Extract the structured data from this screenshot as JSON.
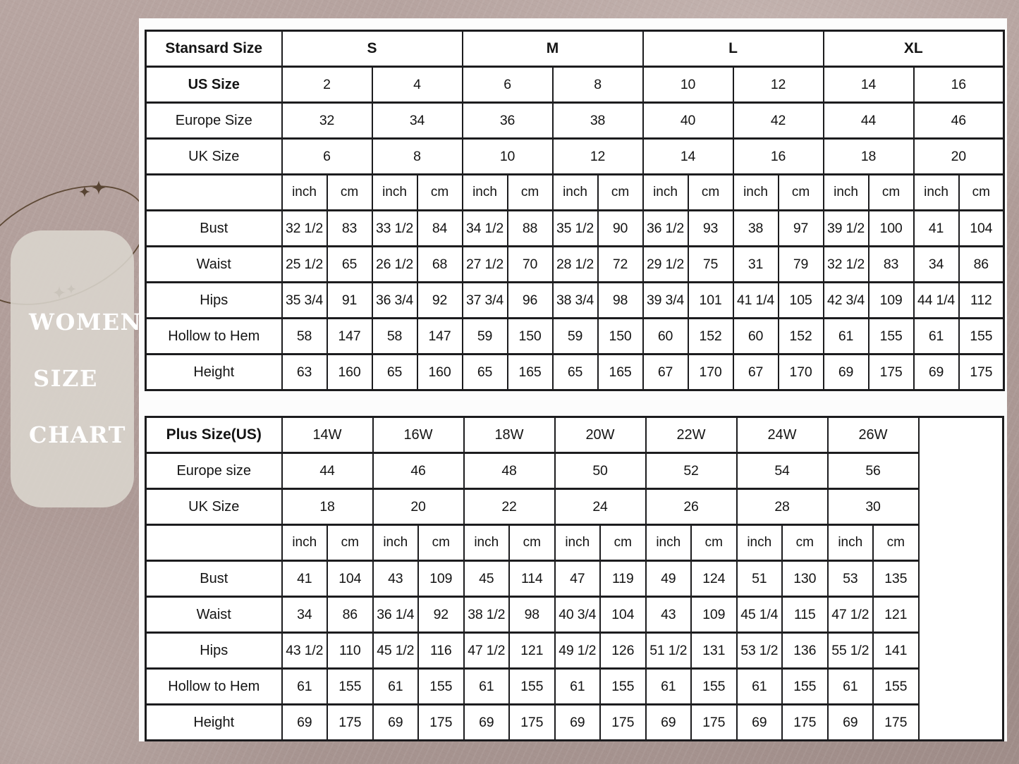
{
  "page_title": "Women Size Chart",
  "side_label": {
    "lines": [
      "WOMEN",
      "SIZE",
      "CHART"
    ]
  },
  "colors": {
    "background": "#ab9793",
    "card": "#dbd6ce",
    "panel": "#fcfcfc",
    "table_border": "#1c1c1e",
    "text": "#141414",
    "deco_line": "#5e4936"
  },
  "standard_table": {
    "corner_label": "Stansard Size",
    "size_groups": [
      "S",
      "M",
      "L",
      "XL"
    ],
    "size_rows": [
      {
        "label": "US Size",
        "bold": true,
        "values": [
          "2",
          "4",
          "6",
          "8",
          "10",
          "12",
          "14",
          "16"
        ]
      },
      {
        "label": "Europe Size",
        "bold": false,
        "values": [
          "32",
          "34",
          "36",
          "38",
          "40",
          "42",
          "44",
          "46"
        ]
      },
      {
        "label": "UK Size",
        "bold": false,
        "values": [
          "6",
          "8",
          "10",
          "12",
          "14",
          "16",
          "18",
          "20"
        ]
      }
    ],
    "unit_row": {
      "units": [
        "inch",
        "cm"
      ]
    },
    "measure_rows": [
      {
        "label": "Bust",
        "values": [
          "32 1/2",
          "83",
          "33 1/2",
          "84",
          "34 1/2",
          "88",
          "35 1/2",
          "90",
          "36 1/2",
          "93",
          "38",
          "97",
          "39 1/2",
          "100",
          "41",
          "104"
        ]
      },
      {
        "label": "Waist",
        "values": [
          "25 1/2",
          "65",
          "26 1/2",
          "68",
          "27 1/2",
          "70",
          "28 1/2",
          "72",
          "29 1/2",
          "75",
          "31",
          "79",
          "32 1/2",
          "83",
          "34",
          "86"
        ]
      },
      {
        "label": "Hips",
        "values": [
          "35 3/4",
          "91",
          "36 3/4",
          "92",
          "37 3/4",
          "96",
          "38 3/4",
          "98",
          "39 3/4",
          "101",
          "41 1/4",
          "105",
          "42 3/4",
          "109",
          "44 1/4",
          "112"
        ]
      },
      {
        "label": "Hollow to Hem",
        "values": [
          "58",
          "147",
          "58",
          "147",
          "59",
          "150",
          "59",
          "150",
          "60",
          "152",
          "60",
          "152",
          "61",
          "155",
          "61",
          "155"
        ]
      },
      {
        "label": "Height",
        "values": [
          "63",
          "160",
          "65",
          "160",
          "65",
          "165",
          "65",
          "165",
          "67",
          "170",
          "67",
          "170",
          "69",
          "175",
          "69",
          "175"
        ]
      }
    ]
  },
  "plus_table": {
    "corner_label": "Plus Size(US)",
    "sizes": [
      "14W",
      "16W",
      "18W",
      "20W",
      "22W",
      "24W",
      "26W"
    ],
    "size_rows": [
      {
        "label": "Europe size",
        "values": [
          "44",
          "46",
          "48",
          "50",
          "52",
          "54",
          "56"
        ]
      },
      {
        "label": "UK Size",
        "values": [
          "18",
          "20",
          "22",
          "24",
          "26",
          "28",
          "30"
        ]
      }
    ],
    "unit_row": {
      "units": [
        "inch",
        "cm"
      ]
    },
    "measure_rows": [
      {
        "label": "Bust",
        "values": [
          "41",
          "104",
          "43",
          "109",
          "45",
          "114",
          "47",
          "119",
          "49",
          "124",
          "51",
          "130",
          "53",
          "135"
        ]
      },
      {
        "label": "Waist",
        "values": [
          "34",
          "86",
          "36 1/4",
          "92",
          "38 1/2",
          "98",
          "40 3/4",
          "104",
          "43",
          "109",
          "45 1/4",
          "115",
          "47 1/2",
          "121"
        ]
      },
      {
        "label": "Hips",
        "values": [
          "43 1/2",
          "110",
          "45 1/2",
          "116",
          "47 1/2",
          "121",
          "49 1/2",
          "126",
          "51 1/2",
          "131",
          "53 1/2",
          "136",
          "55 1/2",
          "141"
        ]
      },
      {
        "label": "Hollow to Hem",
        "values": [
          "61",
          "155",
          "61",
          "155",
          "61",
          "155",
          "61",
          "155",
          "61",
          "155",
          "61",
          "155",
          "61",
          "155"
        ]
      },
      {
        "label": "Height",
        "values": [
          "69",
          "175",
          "69",
          "175",
          "69",
          "175",
          "69",
          "175",
          "69",
          "175",
          "69",
          "175",
          "69",
          "175"
        ]
      }
    ]
  }
}
